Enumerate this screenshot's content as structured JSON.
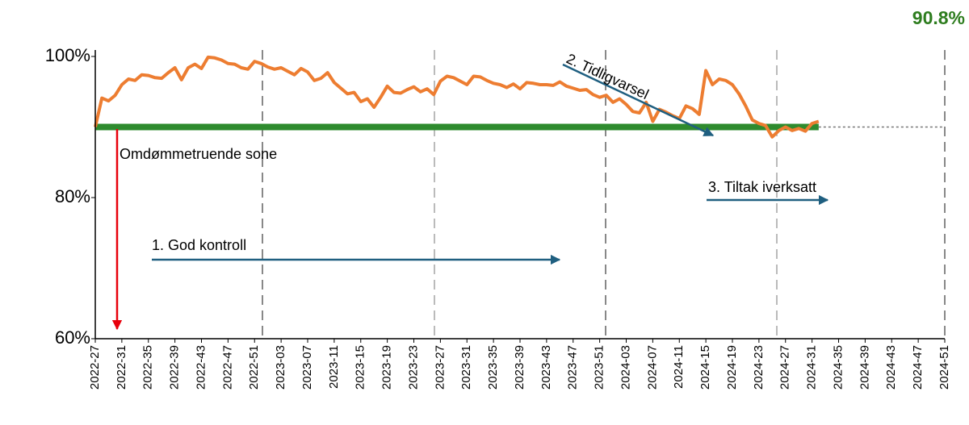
{
  "chart_data": {
    "type": "line",
    "headline": "90.8%",
    "threshold": 90,
    "threshold_label": "Omdømmetruende sone",
    "annotations": [
      "1. God kontroll",
      "2. Tidligvarsel",
      "3. Tiltak iverksatt"
    ],
    "ylim": [
      60,
      100
    ],
    "yticks": [
      {
        "value": 60,
        "label": "60%"
      },
      {
        "value": 80,
        "label": "80%"
      },
      {
        "value": 100,
        "label": "100%"
      }
    ],
    "color": "#ed7d31",
    "threshold_color": "#2e8b2e",
    "categories": [
      "2022-27",
      null,
      null,
      null,
      "2022-31",
      null,
      null,
      null,
      "2022-35",
      null,
      null,
      null,
      "2022-39",
      null,
      null,
      null,
      "2022-43",
      null,
      null,
      null,
      "2022-47",
      null,
      null,
      null,
      "2022-51",
      null,
      null,
      null,
      "2023-03",
      null,
      null,
      null,
      "2023-07",
      null,
      null,
      null,
      "2023-11",
      null,
      null,
      null,
      "2023-15",
      null,
      null,
      null,
      "2023-19",
      null,
      null,
      null,
      "2023-23",
      null,
      null,
      null,
      "2023-27",
      null,
      null,
      null,
      "2023-31",
      null,
      null,
      null,
      "2023-35",
      null,
      null,
      null,
      "2023-39",
      null,
      null,
      null,
      "2023-43",
      null,
      null,
      null,
      "2023-47",
      null,
      null,
      null,
      "2023-51",
      null,
      null,
      null,
      "2024-03",
      null,
      null,
      null,
      "2024-07",
      null,
      null,
      null,
      "2024-11",
      null,
      null,
      null,
      "2024-15",
      null,
      null,
      null,
      "2024-19",
      null,
      null,
      null,
      "2024-23",
      null,
      null,
      null,
      "2024-27",
      null,
      null,
      null,
      "2024-31",
      null,
      null,
      null,
      "2024-35",
      null,
      null,
      null,
      "2024-39",
      null,
      null,
      null,
      "2024-43",
      null,
      null,
      null,
      "2024-47",
      null,
      null,
      null,
      "2024-51"
    ],
    "values": [
      90.0,
      94.1,
      93.7,
      94.5,
      96.0,
      96.8,
      96.6,
      97.4,
      97.3,
      97.0,
      96.9,
      97.7,
      98.4,
      96.7,
      98.4,
      98.9,
      98.3,
      99.9,
      99.8,
      99.5,
      99.0,
      98.9,
      98.4,
      98.2,
      99.3,
      99.0,
      98.5,
      98.2,
      98.4,
      97.9,
      97.4,
      98.3,
      97.8,
      96.6,
      96.9,
      97.7,
      96.3,
      95.5,
      94.7,
      94.9,
      93.6,
      94.0,
      92.8,
      94.2,
      95.8,
      94.9,
      94.8,
      95.3,
      95.7,
      95.0,
      95.4,
      94.6,
      96.5,
      97.2,
      97.0,
      96.5,
      96.0,
      97.2,
      97.1,
      96.6,
      96.2,
      96.0,
      95.6,
      96.1,
      95.4,
      96.3,
      96.2,
      96.0,
      96.0,
      95.9,
      96.4,
      95.8,
      95.5,
      95.2,
      95.3,
      94.6,
      94.2,
      94.5,
      93.5,
      94.0,
      93.2,
      92.2,
      92.0,
      93.5,
      90.8,
      92.5,
      92.1,
      91.6,
      91.2,
      93.0,
      92.6,
      91.8,
      98.0,
      96.0,
      96.8,
      96.6,
      96.0,
      94.7,
      93.0,
      91.0,
      90.5,
      90.2,
      88.6,
      89.5,
      90.0,
      89.5,
      89.8,
      89.4,
      90.5,
      90.8,
      null,
      null,
      null,
      null,
      null,
      null,
      null,
      null,
      null,
      null,
      null,
      null,
      null,
      null,
      null,
      null,
      null,
      null,
      null
    ]
  }
}
